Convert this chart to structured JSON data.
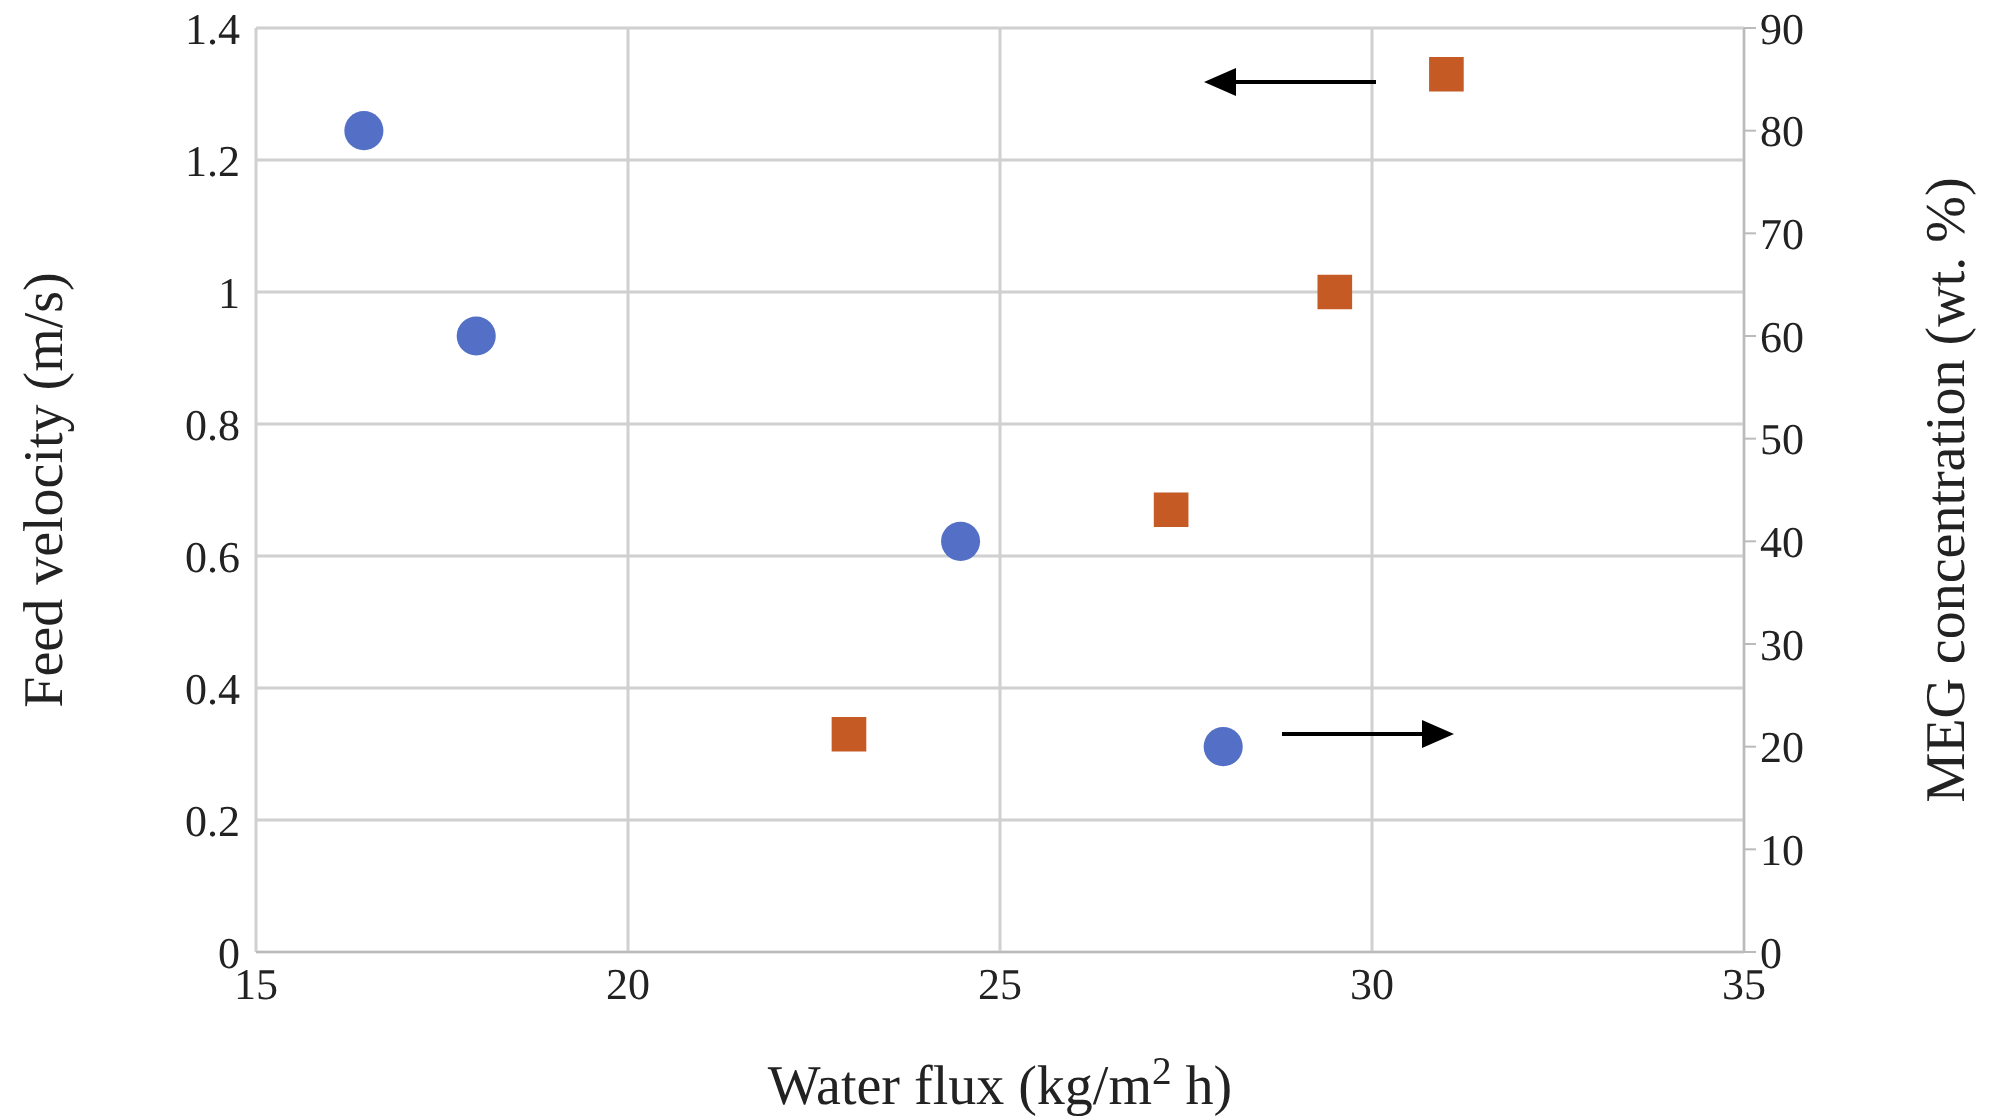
{
  "chart_data": {
    "type": "scatter",
    "xlabel": "Water flux (kg/m$^{2}$ h)",
    "ylabel": "Feed velocity (m/s)",
    "y2label": "MEG concentration (wt. %)",
    "series": [
      {
        "color": "#5470c6",
        "marker": "circle",
        "axis": "y2",
        "x": [
          16.45,
          17.96,
          24.47,
          28.0
        ],
        "values": [
          80,
          60,
          40,
          20
        ]
      },
      {
        "color": "#c55a24",
        "marker": "square",
        "axis": "y",
        "x": [
          22.97,
          27.3,
          29.5,
          31.0
        ],
        "values": [
          0.33,
          0.67,
          1.0,
          1.33
        ]
      }
    ],
    "xlim": [
      15,
      35
    ],
    "xticks": [
      15,
      20,
      25,
      30,
      35
    ],
    "ylim": [
      0,
      1.4
    ],
    "yticks": [
      0,
      0.2,
      0.4,
      0.6,
      0.8,
      1,
      1.2,
      1.4
    ],
    "y2lim": [
      0,
      90
    ],
    "y2ticks": [
      0,
      10,
      20,
      30,
      40,
      50,
      60,
      70,
      80,
      90
    ],
    "grid": true
  }
}
